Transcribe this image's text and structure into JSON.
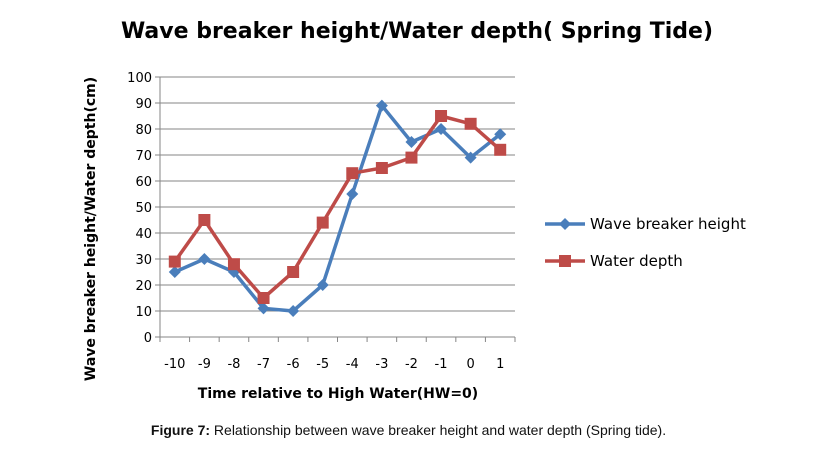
{
  "chart_data": {
    "type": "line",
    "title": "Wave breaker height/Water depth( Spring Tide)",
    "xlabel": "Time relative to High  Water(HW=0)",
    "ylabel": "Wave breaker height/Water depth(cm)",
    "categories": [
      "-10",
      "-9",
      "-8",
      "-7",
      "-6",
      "-5",
      "-4",
      "-3",
      "-2",
      "-1",
      "0",
      "1"
    ],
    "yticks": [
      "0",
      "10",
      "20",
      "30",
      "40",
      "50",
      "60",
      "70",
      "80",
      "90",
      "100"
    ],
    "ylim": [
      0,
      100
    ],
    "grid": true,
    "legend_position": "right",
    "series": [
      {
        "name": "Wave breaker height",
        "color": "#4a7ebb",
        "marker": "diamond",
        "values": [
          25,
          30,
          25,
          11,
          10,
          20,
          55,
          89,
          75,
          80,
          69,
          78
        ]
      },
      {
        "name": "Water depth",
        "color": "#be4b48",
        "marker": "square",
        "values": [
          29,
          45,
          28,
          15,
          25,
          44,
          63,
          65,
          69,
          85,
          82,
          72
        ]
      }
    ]
  },
  "caption": {
    "prefix": "Figure 7:",
    "text": " Relationship between wave breaker height and water depth (Spring tide)."
  }
}
